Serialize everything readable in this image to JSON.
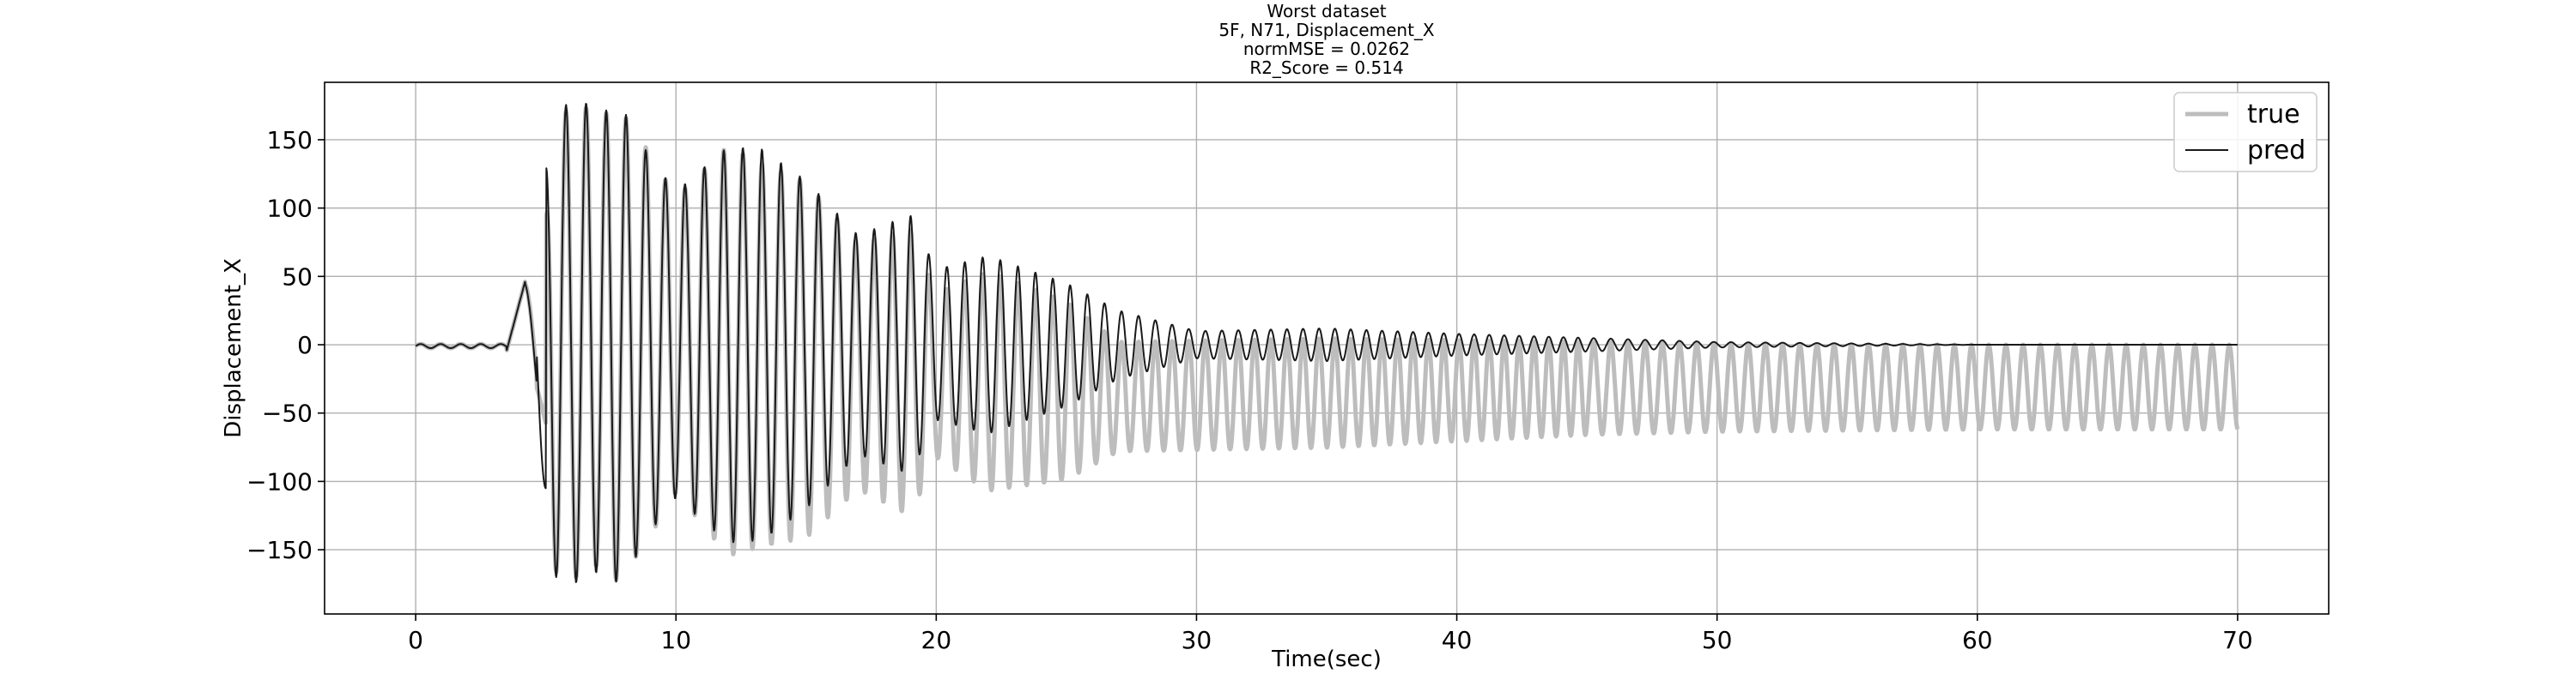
{
  "chart_data": {
    "type": "line",
    "title_lines": [
      "Worst dataset",
      "5F, N71, Displacement_X",
      "normMSE = 0.0262",
      "R2_Score = 0.514"
    ],
    "xlabel": "Time(sec)",
    "ylabel": "Displacement_X",
    "xlim": [
      -3.5,
      73.5
    ],
    "ylim": [
      -197,
      192
    ],
    "xticks": [
      0,
      10,
      20,
      30,
      40,
      50,
      60,
      70
    ],
    "xtick_labels": [
      "0",
      "10",
      "20",
      "30",
      "40",
      "50",
      "60",
      "70"
    ],
    "yticks": [
      -150,
      -100,
      -50,
      0,
      50,
      100,
      150
    ],
    "ytick_labels": [
      "−150",
      "−100",
      "−50",
      "0",
      "50",
      "100",
      "150"
    ],
    "grid": true,
    "legend_position": "top-right",
    "series": [
      {
        "name": "true",
        "color": "#bdbdbd",
        "x": [
          0,
          1,
          2,
          3,
          3.5,
          4,
          4.2,
          4.4,
          4.8,
          5.2,
          5.5,
          6,
          6.5,
          7,
          7.5,
          8,
          9,
          10,
          12,
          13.3,
          15,
          17,
          19,
          20,
          22,
          25,
          27,
          30,
          35,
          40,
          45,
          50,
          60,
          70
        ],
        "y": [
          -2,
          -1,
          1,
          -2,
          -4,
          15,
          40,
          50,
          -30,
          150,
          -175,
          168,
          -175,
          160,
          -175,
          168,
          -140,
          108,
          -150,
          140,
          -130,
          -90,
          -105,
          -60,
          -80,
          -65,
          -40,
          -40,
          -40,
          -37,
          -34,
          -32,
          -31,
          -31
        ]
      },
      {
        "name": "pred",
        "color": "#1a1a1a",
        "x": [
          0,
          1,
          2,
          3,
          3.5,
          4,
          4.2,
          4.4,
          4.8,
          5.2,
          5.5,
          6,
          6.5,
          7,
          7.5,
          8,
          9,
          10,
          12,
          13.3,
          15,
          17,
          19,
          20,
          22,
          25,
          27,
          30,
          35,
          40,
          45,
          50,
          60,
          70
        ],
        "y": [
          -2,
          0,
          1,
          -2,
          -4,
          15,
          40,
          47,
          -105,
          152,
          -180,
          172,
          -178,
          165,
          -175,
          171,
          -137,
          112,
          -145,
          143,
          -120,
          -80,
          -95,
          -55,
          -65,
          -45,
          -25,
          -10,
          -12,
          -8,
          -5,
          -2,
          0,
          0
        ]
      }
    ]
  }
}
